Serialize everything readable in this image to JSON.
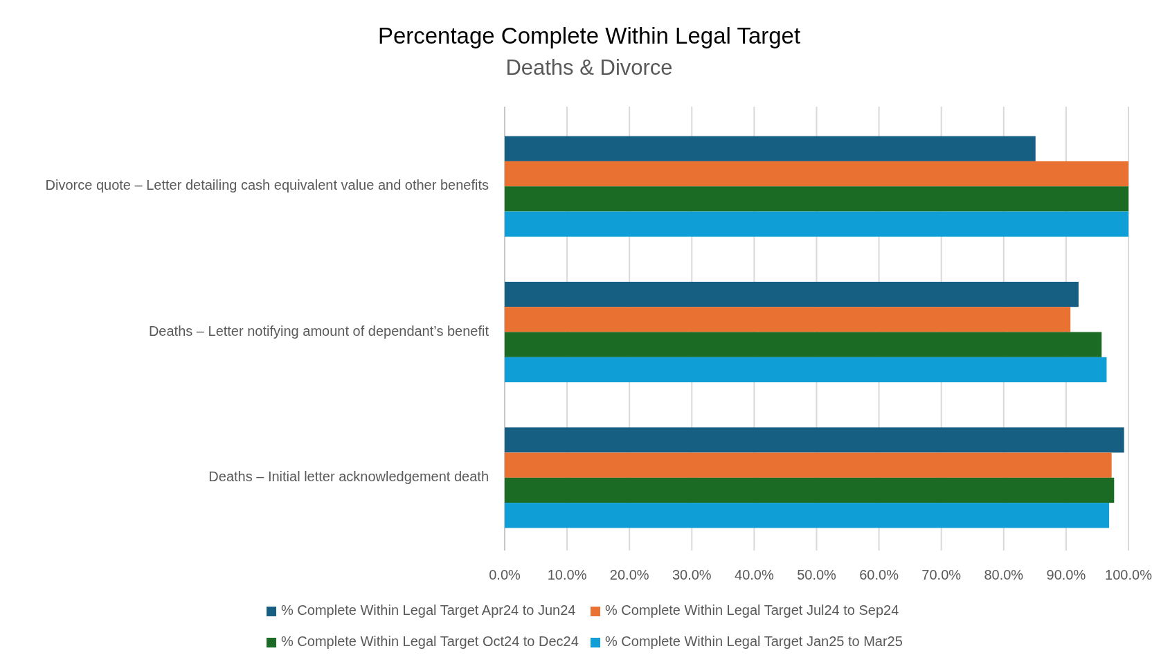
{
  "chart_data": {
    "type": "bar",
    "orientation": "horizontal",
    "title": "Percentage Complete Within Legal Target",
    "subtitle": "Deaths & Divorce",
    "categories": [
      "Divorce quote – Letter detailing cash equivalent value and other benefits",
      "Deaths – Letter notifying amount of dependant’s benefit",
      "Deaths – Initial letter acknowledgement death"
    ],
    "series": [
      {
        "name": "% Complete Within Legal Target Apr24 to Jun24",
        "color": "#175f82",
        "values": [
          85.1,
          92.0,
          99.3
        ]
      },
      {
        "name": "% Complete Within Legal Target Jul24 to Sep24",
        "color": "#e97132",
        "values": [
          100,
          90.7,
          97.3
        ]
      },
      {
        "name": "% Complete Within Legal Target Oct24 to Dec24",
        "color": "#1b6b25",
        "values": [
          100,
          95.7,
          97.7
        ]
      },
      {
        "name": "% Complete Within Legal Target Jan25 to Mar25",
        "color": "#0f9ed5",
        "values": [
          100,
          96.5,
          96.9
        ]
      }
    ],
    "xlim": [
      0,
      100
    ],
    "xticks": [
      {
        "value": 0,
        "label": "0.0%"
      },
      {
        "value": 10,
        "label": "10.0%"
      },
      {
        "value": 20,
        "label": "20.0%"
      },
      {
        "value": 30,
        "label": "30.0%"
      },
      {
        "value": 40,
        "label": "40.0%"
      },
      {
        "value": 50,
        "label": "50.0%"
      },
      {
        "value": 60,
        "label": "60.0%"
      },
      {
        "value": 70,
        "label": "70.0%"
      },
      {
        "value": 80,
        "label": "80.0%"
      },
      {
        "value": 90,
        "label": "90.0%"
      },
      {
        "value": 100,
        "label": "100.0%"
      }
    ],
    "grid": "x",
    "legend": "bottom"
  }
}
